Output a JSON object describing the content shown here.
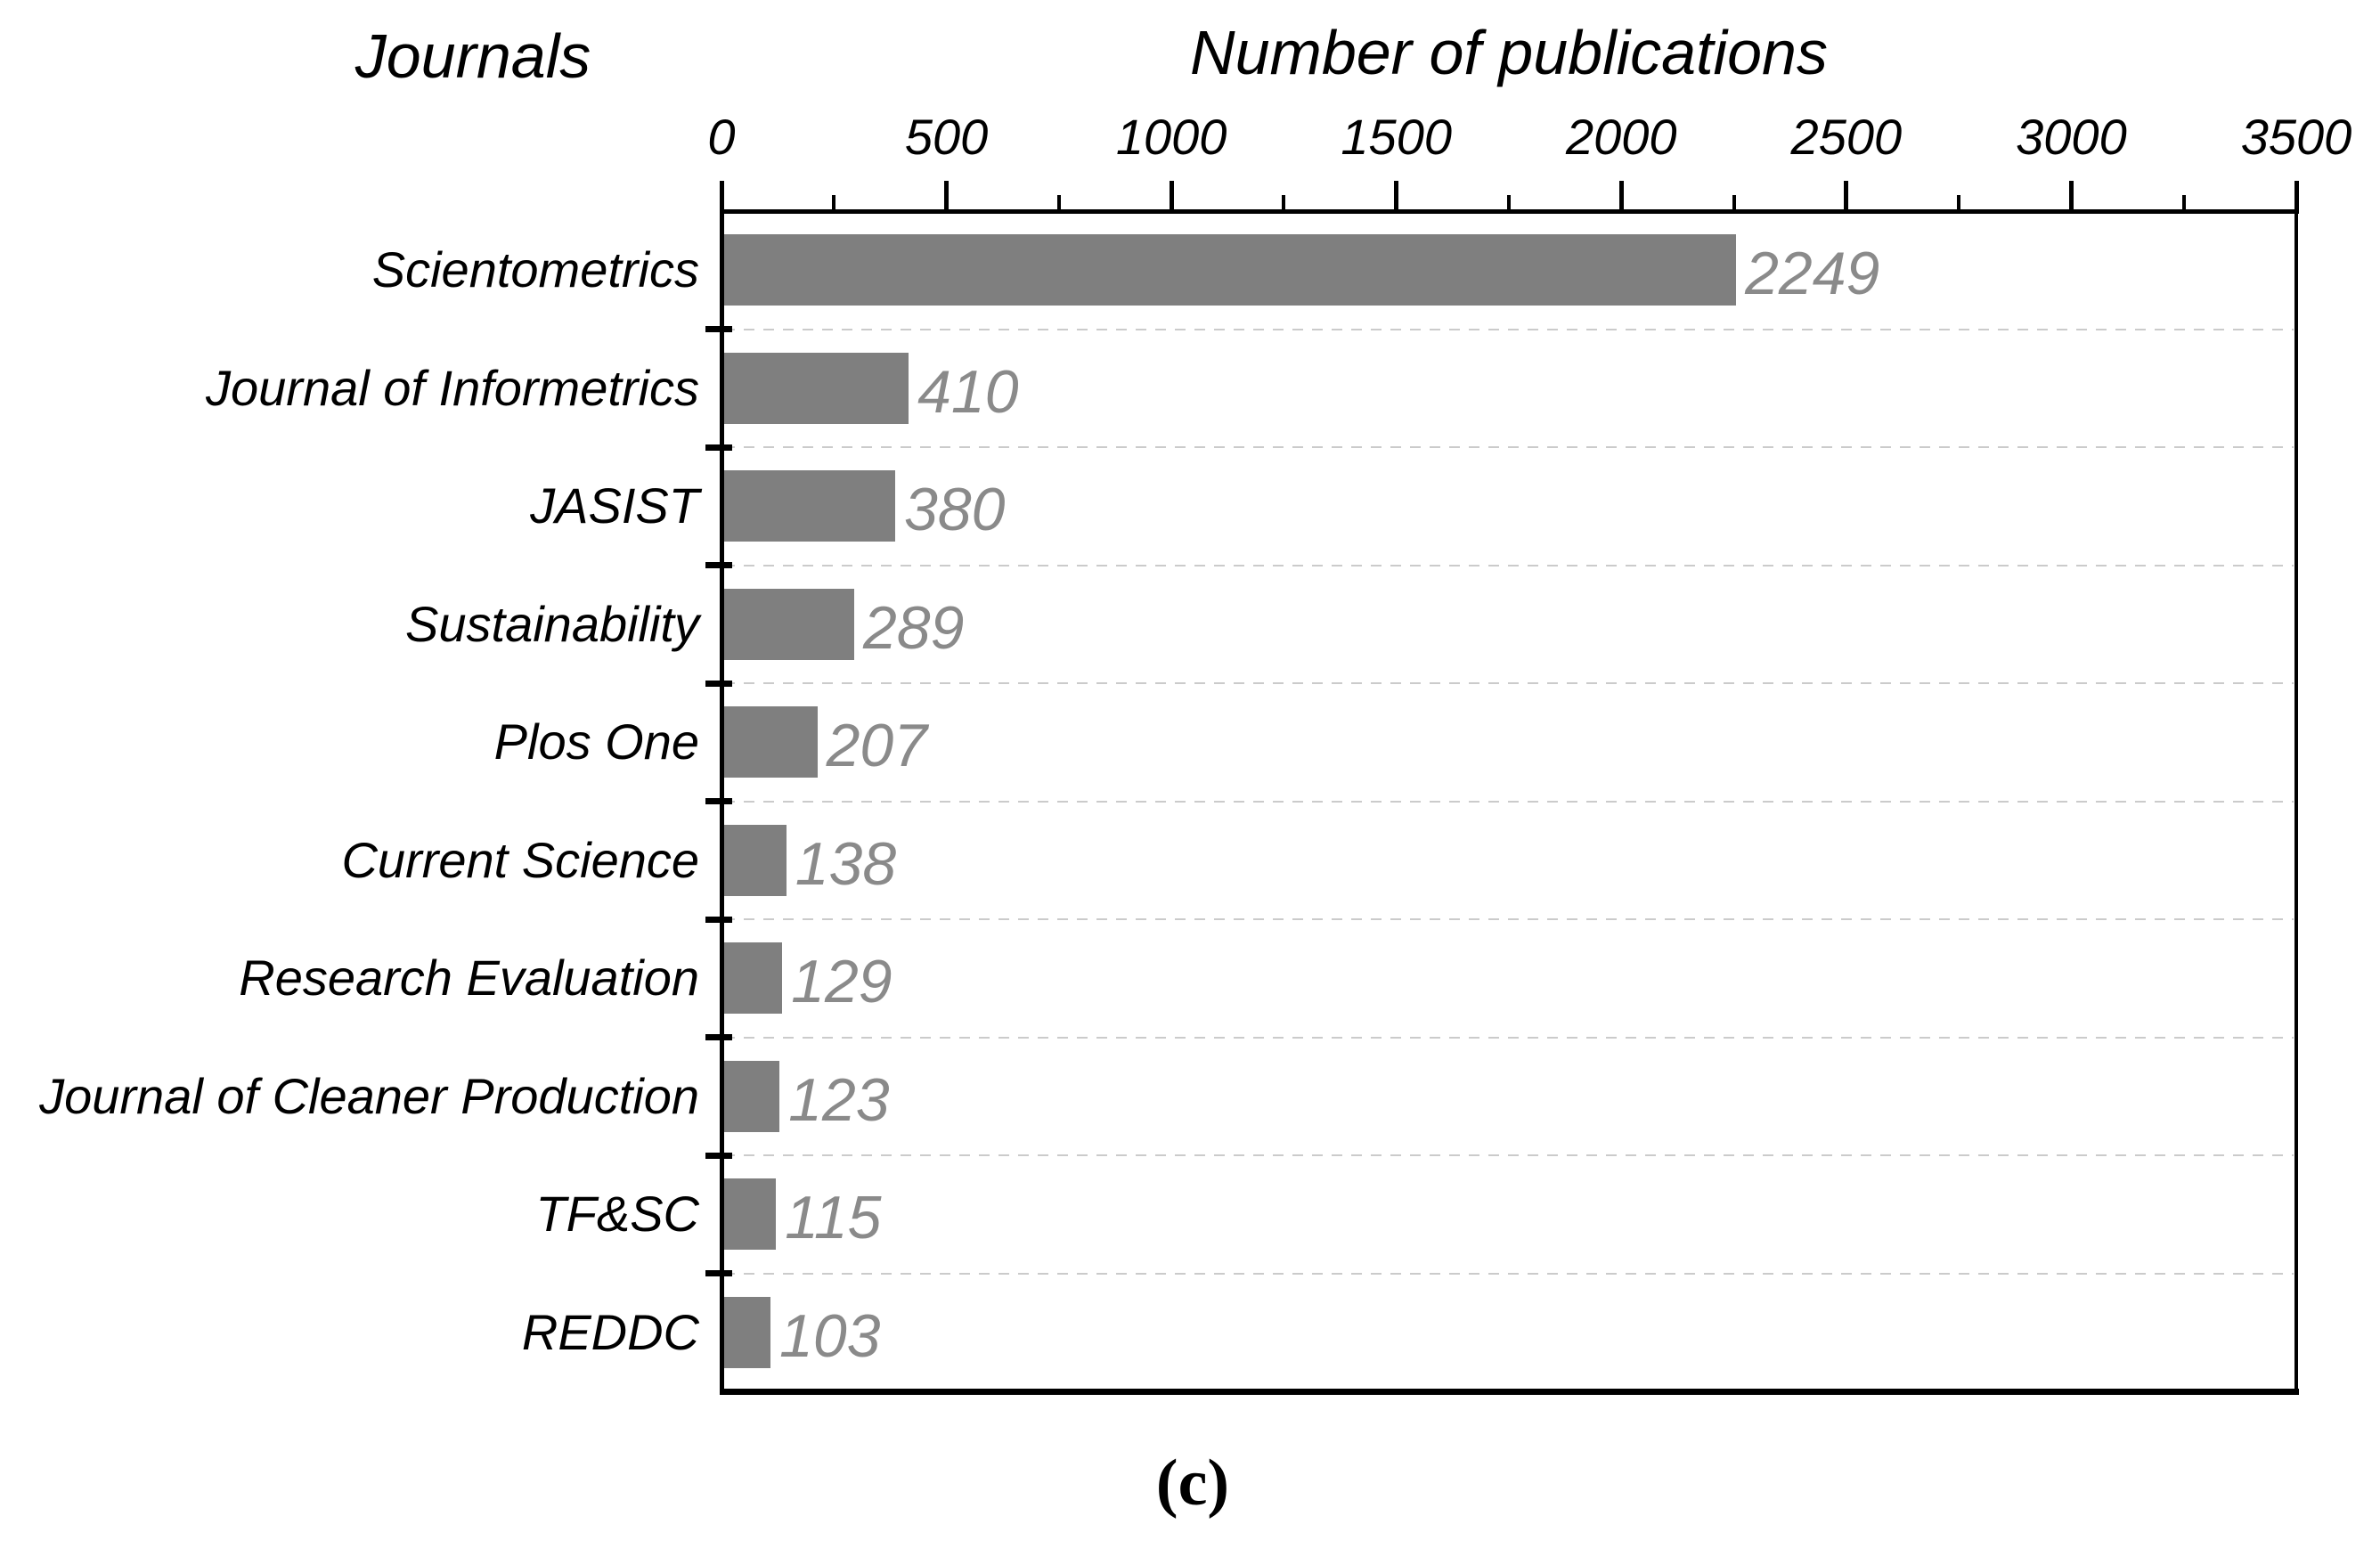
{
  "figure": {
    "left_title": "Journals",
    "top_title": "Number of publications",
    "caption": "(c)"
  },
  "chart_data": {
    "type": "bar",
    "orientation": "horizontal",
    "xlabel": "Number of publications",
    "ylabel": "Journals",
    "categories": [
      "Scientometrics",
      "Journal of Informetrics",
      "JASIST",
      "Sustainability",
      "Plos One",
      "Current Science",
      "Research Evaluation",
      "Journal of Cleaner Production",
      "TF&SC",
      "REDDC"
    ],
    "values": [
      2249,
      410,
      380,
      289,
      207,
      138,
      129,
      123,
      115,
      103
    ],
    "value_labels": [
      "2249",
      "410",
      "380",
      "289",
      "207",
      "138",
      "129",
      "123",
      "115",
      "103"
    ],
    "xlim": [
      0,
      3500
    ],
    "x_major_tick_step": 500,
    "x_minor_tick_step": 250,
    "x_tick_labels": [
      "0",
      "500",
      "1000",
      "1500",
      "2000",
      "2500",
      "3000",
      "3500"
    ],
    "x_ticks_position": "top",
    "grid": "horizontal-dashed-between-categories",
    "legend": "none",
    "colors": {
      "bar": "#7f7f7f",
      "value_label": "#8a8a8a",
      "axis": "#000000",
      "gridline": "#cbcbcb",
      "text": "#000000"
    }
  }
}
